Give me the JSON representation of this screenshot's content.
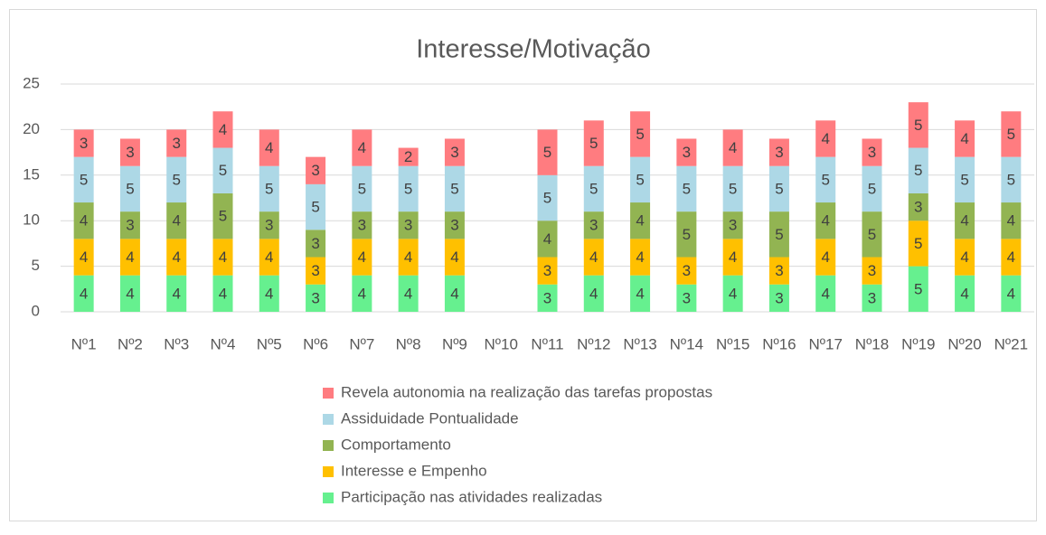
{
  "chart_data": {
    "type": "stacked_bar",
    "title": "Interesse/Motivação",
    "categories": [
      "Nº1",
      "Nº2",
      "Nº3",
      "Nº4",
      "Nº5",
      "Nº6",
      "Nº7",
      "Nº8",
      "Nº9",
      "Nº10",
      "Nº11",
      "Nº12",
      "Nº13",
      "Nº14",
      "Nº15",
      "Nº16",
      "Nº17",
      "Nº18",
      "Nº19",
      "Nº20",
      "Nº21"
    ],
    "series": [
      {
        "name": "Participação nas atividades realizadas",
        "color": "#66f08f",
        "values": [
          4,
          4,
          4,
          4,
          4,
          3,
          4,
          4,
          4,
          null,
          3,
          4,
          4,
          3,
          4,
          3,
          4,
          3,
          5,
          4,
          4
        ]
      },
      {
        "name": "Interesse e Empenho",
        "color": "#ffc000",
        "values": [
          4,
          4,
          4,
          4,
          4,
          3,
          4,
          4,
          4,
          null,
          3,
          4,
          4,
          3,
          4,
          3,
          4,
          3,
          5,
          4,
          4
        ]
      },
      {
        "name": "Comportamento",
        "color": "#92b452",
        "values": [
          4,
          3,
          4,
          5,
          3,
          3,
          3,
          3,
          3,
          null,
          4,
          3,
          4,
          5,
          3,
          5,
          4,
          5,
          3,
          4,
          4
        ]
      },
      {
        "name": "Assiduidade  Pontualidade",
        "color": "#add8e6",
        "values": [
          5,
          5,
          5,
          5,
          5,
          5,
          5,
          5,
          5,
          null,
          5,
          5,
          5,
          5,
          5,
          5,
          5,
          5,
          5,
          5,
          5
        ]
      },
      {
        "name": "Revela autonomia na realização das tarefas propostas",
        "color": "#ff7c80",
        "values": [
          3,
          3,
          3,
          4,
          4,
          3,
          4,
          2,
          3,
          null,
          5,
          5,
          5,
          3,
          4,
          3,
          4,
          3,
          5,
          4,
          5
        ]
      }
    ],
    "ylim": [
      0,
      25
    ],
    "yticks": [
      0,
      5,
      10,
      15,
      20,
      25
    ],
    "grid": true
  }
}
